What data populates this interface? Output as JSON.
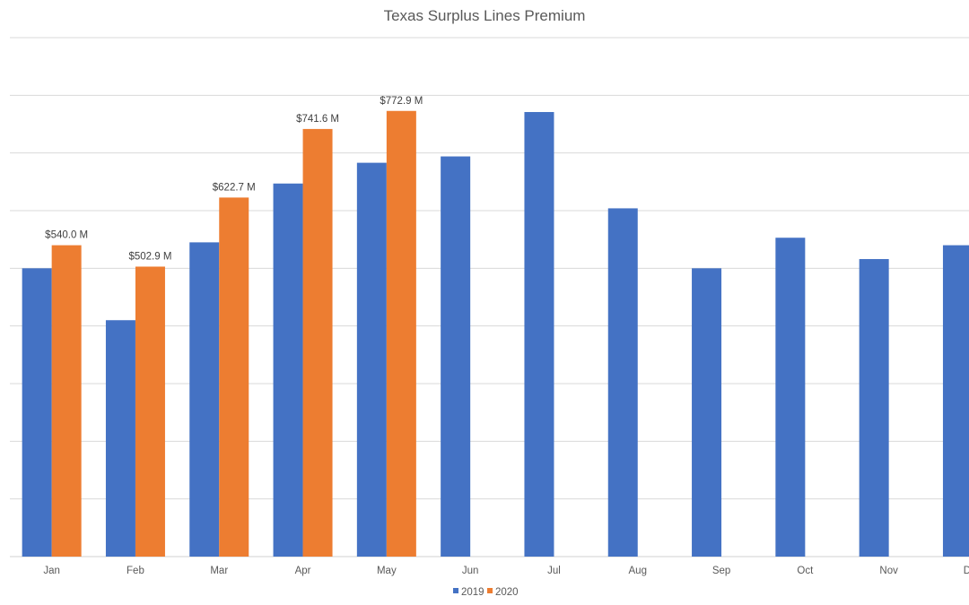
{
  "chart_data": {
    "type": "bar",
    "title": "Texas Surplus Lines Premium",
    "xlabel": "",
    "ylabel": "",
    "categories": [
      "Jan",
      "Feb",
      "Mar",
      "Apr",
      "May",
      "Jun",
      "Jul",
      "Aug",
      "Sep",
      "Oct",
      "Nov",
      "Dec"
    ],
    "series": [
      {
        "name": "2019",
        "color": "#4472C4",
        "values": [
          500,
          410,
          545,
          647,
          683,
          694,
          771,
          604,
          500,
          553,
          516,
          540
        ]
      },
      {
        "name": "2020",
        "color": "#ED7D31",
        "values": [
          540.0,
          502.9,
          622.7,
          741.6,
          772.9,
          null,
          null,
          null,
          null,
          null,
          null,
          null
        ],
        "data_labels": [
          "$540.0 M",
          "$502.9 M",
          "$622.7 M",
          "$741.6 M",
          "$772.9 M"
        ]
      }
    ],
    "ylim": [
      0,
      900
    ],
    "y_gridline_step": 100,
    "grid": true,
    "legend": "bottom"
  }
}
